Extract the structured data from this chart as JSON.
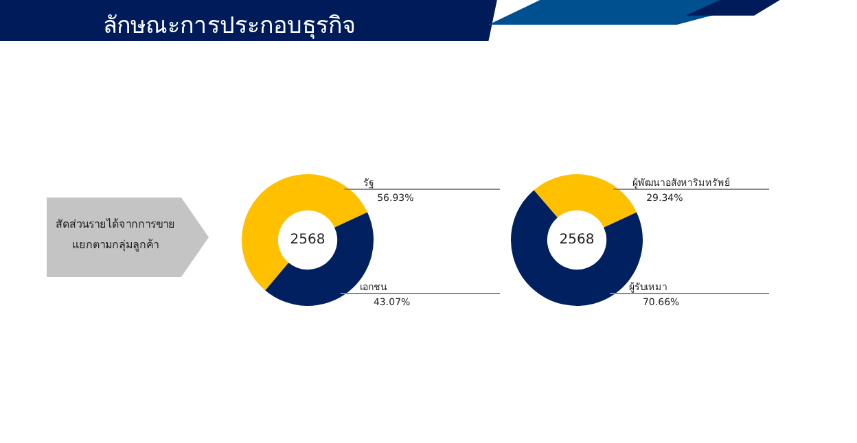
{
  "chart_data": [
    {
      "type": "donut",
      "title": "ลักษณะการประกอบธุรกิจ",
      "annotations": [
        "สัดส่วนรายได้จากการขาย แยกตามกลุ่มลูกค้า",
        "2568"
      ],
      "categories": [
        "รัฐ",
        "เอกชน"
      ],
      "values": [
        56.93,
        43.07
      ],
      "colors": [
        "#ffc000",
        "#002060"
      ],
      "value_labels": [
        "56.93%",
        "43.07%"
      ],
      "legend": false
    },
    {
      "type": "donut",
      "annotations": [
        "2568"
      ],
      "categories": [
        "ผู้พัฒนาอสังหาริมทรัพย์",
        "ผู้รับเหมา"
      ],
      "values": [
        29.34,
        70.66
      ],
      "colors": [
        "#ffc000",
        "#002060"
      ],
      "value_labels": [
        "29.34%",
        "70.66%"
      ],
      "legend": false
    }
  ]
}
